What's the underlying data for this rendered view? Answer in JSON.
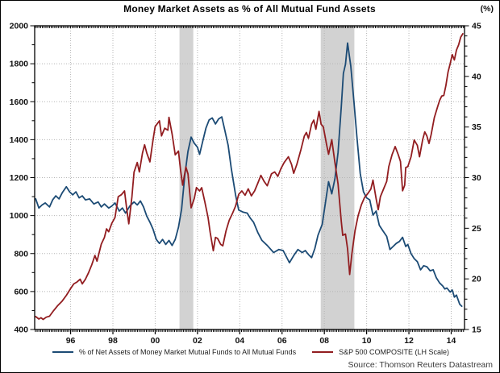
{
  "title": "Money Market Assets as % of All Mutual Fund Assets",
  "right_axis_unit": "(%)",
  "source": "Source: Thomson Reuters Datastream",
  "legend": [
    {
      "label": "% of Net Assets of Money Market Mutual Funds to All Mutual Funds",
      "color": "#1c4b75"
    },
    {
      "label": "S&P 500 COMPOSITE (LH Scale)",
      "color": "#921d20"
    }
  ],
  "chart_data": {
    "type": "line",
    "title": "Money Market Assets as % of All Mutual Fund Assets",
    "grid": "dotted",
    "x_axis": {
      "range": [
        1994.3,
        2014.63
      ],
      "tick_years": [
        1996,
        1998,
        2000,
        2002,
        2004,
        2006,
        2008,
        2010,
        2012,
        2014
      ],
      "tick_labels": [
        "96",
        "98",
        "00",
        "02",
        "04",
        "06",
        "08",
        "10",
        "12",
        "14"
      ]
    },
    "left_axis": {
      "range": [
        400,
        2000
      ],
      "ticks": [
        2000,
        1800,
        1600,
        1400,
        1200,
        1000,
        800,
        600,
        400
      ],
      "minor_step": 100,
      "applies_to": "S&P 500 COMPOSITE (LH Scale)"
    },
    "right_axis": {
      "range": [
        15,
        45
      ],
      "ticks": [
        45,
        40,
        35,
        30,
        25,
        20,
        15
      ],
      "minor_step": 1,
      "unit": "(%)",
      "applies_to": "% of Net Assets of Money Market Mutual Funds to All Mutual Funds"
    },
    "shaded_regions": [
      {
        "from": 2001.15,
        "to": 2001.8,
        "color": "#d2d2d2",
        "meaning": "recession band"
      },
      {
        "from": 2007.83,
        "to": 2009.42,
        "color": "#d2d2d2",
        "meaning": "recession band"
      }
    ],
    "series": [
      {
        "name": "% of Net Assets of Money Market Mutual Funds to All Mutual Funds",
        "axis": "right",
        "color": "#1c4b75",
        "points": [
          [
            1994.35,
            27.9
          ],
          [
            1994.5,
            27.0
          ],
          [
            1994.65,
            27.3
          ],
          [
            1994.8,
            27.5
          ],
          [
            1995.0,
            27.1
          ],
          [
            1995.15,
            27.8
          ],
          [
            1995.3,
            28.2
          ],
          [
            1995.45,
            27.9
          ],
          [
            1995.6,
            28.5
          ],
          [
            1995.8,
            29.1
          ],
          [
            1995.95,
            28.6
          ],
          [
            1996.1,
            28.3
          ],
          [
            1996.25,
            28.6
          ],
          [
            1996.4,
            28.0
          ],
          [
            1996.55,
            28.2
          ],
          [
            1996.7,
            27.8
          ],
          [
            1996.9,
            27.9
          ],
          [
            1997.1,
            27.4
          ],
          [
            1997.3,
            27.6
          ],
          [
            1997.45,
            27.1
          ],
          [
            1997.6,
            27.4
          ],
          [
            1997.8,
            27.0
          ],
          [
            1997.95,
            27.2
          ],
          [
            1998.1,
            27.5
          ],
          [
            1998.3,
            26.7
          ],
          [
            1998.45,
            27.0
          ],
          [
            1998.6,
            26.5
          ],
          [
            1998.8,
            27.2
          ],
          [
            1999.0,
            27.6
          ],
          [
            1999.15,
            27.3
          ],
          [
            1999.3,
            27.7
          ],
          [
            1999.45,
            27.1
          ],
          [
            1999.6,
            26.2
          ],
          [
            1999.75,
            25.6
          ],
          [
            1999.9,
            24.9
          ],
          [
            2000.05,
            23.9
          ],
          [
            2000.2,
            23.5
          ],
          [
            2000.35,
            23.9
          ],
          [
            2000.5,
            23.4
          ],
          [
            2000.65,
            23.8
          ],
          [
            2000.8,
            23.3
          ],
          [
            2000.95,
            23.9
          ],
          [
            2001.1,
            25.1
          ],
          [
            2001.25,
            26.9
          ],
          [
            2001.4,
            30.2
          ],
          [
            2001.55,
            32.6
          ],
          [
            2001.7,
            34.0
          ],
          [
            2001.85,
            33.4
          ],
          [
            2002.0,
            33.0
          ],
          [
            2002.1,
            32.3
          ],
          [
            2002.25,
            33.6
          ],
          [
            2002.4,
            34.9
          ],
          [
            2002.55,
            35.7
          ],
          [
            2002.7,
            35.9
          ],
          [
            2002.85,
            35.3
          ],
          [
            2003.0,
            35.8
          ],
          [
            2003.15,
            36.0
          ],
          [
            2003.3,
            34.6
          ],
          [
            2003.45,
            33.2
          ],
          [
            2003.6,
            30.9
          ],
          [
            2003.8,
            28.3
          ],
          [
            2003.95,
            26.8
          ],
          [
            2004.15,
            26.6
          ],
          [
            2004.35,
            26.5
          ],
          [
            2004.5,
            26.0
          ],
          [
            2004.65,
            25.6
          ],
          [
            2004.85,
            24.6
          ],
          [
            2005.05,
            23.8
          ],
          [
            2005.3,
            23.3
          ],
          [
            2005.6,
            22.6
          ],
          [
            2005.85,
            22.9
          ],
          [
            2006.05,
            22.8
          ],
          [
            2006.2,
            22.2
          ],
          [
            2006.35,
            21.6
          ],
          [
            2006.55,
            22.3
          ],
          [
            2006.75,
            22.9
          ],
          [
            2006.95,
            22.6
          ],
          [
            2007.1,
            22.8
          ],
          [
            2007.25,
            22.4
          ],
          [
            2007.4,
            22.1
          ],
          [
            2007.55,
            23.0
          ],
          [
            2007.7,
            24.3
          ],
          [
            2007.9,
            25.4
          ],
          [
            2008.05,
            27.5
          ],
          [
            2008.2,
            29.6
          ],
          [
            2008.35,
            28.4
          ],
          [
            2008.5,
            29.9
          ],
          [
            2008.65,
            32.5
          ],
          [
            2008.8,
            37.0
          ],
          [
            2008.9,
            40.3
          ],
          [
            2009.0,
            41.2
          ],
          [
            2009.1,
            43.3
          ],
          [
            2009.25,
            41.0
          ],
          [
            2009.4,
            37.5
          ],
          [
            2009.55,
            33.8
          ],
          [
            2009.7,
            30.4
          ],
          [
            2009.85,
            28.6
          ],
          [
            2010.0,
            28.0
          ],
          [
            2010.15,
            27.8
          ],
          [
            2010.3,
            26.3
          ],
          [
            2010.45,
            26.7
          ],
          [
            2010.6,
            25.3
          ],
          [
            2010.75,
            24.8
          ],
          [
            2010.95,
            24.2
          ],
          [
            2011.1,
            22.9
          ],
          [
            2011.25,
            23.2
          ],
          [
            2011.4,
            23.5
          ],
          [
            2011.55,
            23.7
          ],
          [
            2011.7,
            24.1
          ],
          [
            2011.85,
            23.2
          ],
          [
            2011.95,
            23.4
          ],
          [
            2012.1,
            22.5
          ],
          [
            2012.25,
            22.0
          ],
          [
            2012.4,
            21.7
          ],
          [
            2012.55,
            20.9
          ],
          [
            2012.7,
            21.3
          ],
          [
            2012.85,
            21.2
          ],
          [
            2013.0,
            20.8
          ],
          [
            2013.15,
            20.9
          ],
          [
            2013.3,
            20.1
          ],
          [
            2013.45,
            19.6
          ],
          [
            2013.6,
            19.3
          ],
          [
            2013.7,
            19.0
          ],
          [
            2013.8,
            19.1
          ],
          [
            2013.95,
            18.7
          ],
          [
            2014.05,
            18.9
          ],
          [
            2014.15,
            18.2
          ],
          [
            2014.25,
            18.4
          ],
          [
            2014.4,
            17.5
          ],
          [
            2014.5,
            17.3
          ]
        ]
      },
      {
        "name": "S&P 500 COMPOSITE (LH Scale)",
        "axis": "left",
        "color": "#921d20",
        "points": [
          [
            1994.35,
            468
          ],
          [
            1994.5,
            455
          ],
          [
            1994.6,
            462
          ],
          [
            1994.7,
            453
          ],
          [
            1994.85,
            465
          ],
          [
            1995.0,
            470
          ],
          [
            1995.2,
            500
          ],
          [
            1995.4,
            527
          ],
          [
            1995.6,
            550
          ],
          [
            1995.8,
            580
          ],
          [
            1996.0,
            616
          ],
          [
            1996.15,
            640
          ],
          [
            1996.3,
            650
          ],
          [
            1996.45,
            665
          ],
          [
            1996.55,
            640
          ],
          [
            1996.7,
            665
          ],
          [
            1996.85,
            700
          ],
          [
            1997.0,
            741
          ],
          [
            1997.15,
            790
          ],
          [
            1997.25,
            760
          ],
          [
            1997.45,
            850
          ],
          [
            1997.6,
            885
          ],
          [
            1997.7,
            930
          ],
          [
            1997.8,
            915
          ],
          [
            1997.95,
            960
          ],
          [
            1998.1,
            990
          ],
          [
            1998.25,
            1100
          ],
          [
            1998.4,
            1110
          ],
          [
            1998.55,
            1130
          ],
          [
            1998.65,
            1040
          ],
          [
            1998.75,
            957
          ],
          [
            1998.9,
            1100
          ],
          [
            1999.0,
            1229
          ],
          [
            1999.15,
            1280
          ],
          [
            1999.25,
            1230
          ],
          [
            1999.4,
            1330
          ],
          [
            1999.5,
            1373
          ],
          [
            1999.6,
            1330
          ],
          [
            1999.75,
            1283
          ],
          [
            1999.9,
            1400
          ],
          [
            2000.0,
            1469
          ],
          [
            2000.2,
            1499
          ],
          [
            2000.3,
            1420
          ],
          [
            2000.45,
            1460
          ],
          [
            2000.6,
            1450
          ],
          [
            2000.65,
            1518
          ],
          [
            2000.8,
            1430
          ],
          [
            2000.95,
            1320
          ],
          [
            2001.1,
            1340
          ],
          [
            2001.2,
            1240
          ],
          [
            2001.3,
            1160
          ],
          [
            2001.45,
            1256
          ],
          [
            2001.55,
            1220
          ],
          [
            2001.7,
            1041
          ],
          [
            2001.85,
            1090
          ],
          [
            2001.95,
            1148
          ],
          [
            2002.1,
            1130
          ],
          [
            2002.2,
            1147
          ],
          [
            2002.35,
            1070
          ],
          [
            2002.5,
            990
          ],
          [
            2002.6,
            912
          ],
          [
            2002.75,
            815
          ],
          [
            2002.85,
            885
          ],
          [
            2002.95,
            880
          ],
          [
            2003.1,
            848
          ],
          [
            2003.2,
            841
          ],
          [
            2003.35,
            920
          ],
          [
            2003.5,
            975
          ],
          [
            2003.65,
            1010
          ],
          [
            2003.8,
            1050
          ],
          [
            2003.95,
            1112
          ],
          [
            2004.1,
            1130
          ],
          [
            2004.25,
            1107
          ],
          [
            2004.4,
            1141
          ],
          [
            2004.55,
            1104
          ],
          [
            2004.7,
            1130
          ],
          [
            2004.85,
            1170
          ],
          [
            2005.0,
            1212
          ],
          [
            2005.15,
            1180
          ],
          [
            2005.3,
            1157
          ],
          [
            2005.5,
            1220
          ],
          [
            2005.65,
            1230
          ],
          [
            2005.8,
            1207
          ],
          [
            2005.95,
            1248
          ],
          [
            2006.1,
            1280
          ],
          [
            2006.3,
            1310
          ],
          [
            2006.45,
            1270
          ],
          [
            2006.55,
            1223
          ],
          [
            2006.7,
            1270
          ],
          [
            2006.9,
            1350
          ],
          [
            2007.05,
            1418
          ],
          [
            2007.15,
            1438
          ],
          [
            2007.25,
            1407
          ],
          [
            2007.4,
            1482
          ],
          [
            2007.5,
            1503
          ],
          [
            2007.6,
            1455
          ],
          [
            2007.75,
            1549
          ],
          [
            2007.85,
            1481
          ],
          [
            2007.95,
            1468
          ],
          [
            2008.1,
            1378
          ],
          [
            2008.2,
            1323
          ],
          [
            2008.35,
            1400
          ],
          [
            2008.5,
            1280
          ],
          [
            2008.65,
            1166
          ],
          [
            2008.8,
            969
          ],
          [
            2008.87,
            896
          ],
          [
            2009.0,
            903
          ],
          [
            2009.1,
            825
          ],
          [
            2009.2,
            690
          ],
          [
            2009.3,
            798
          ],
          [
            2009.45,
            919
          ],
          [
            2009.6,
            1000
          ],
          [
            2009.75,
            1057
          ],
          [
            2009.9,
            1095
          ],
          [
            2010.05,
            1115
          ],
          [
            2010.2,
            1140
          ],
          [
            2010.3,
            1187
          ],
          [
            2010.45,
            1089
          ],
          [
            2010.55,
            1031
          ],
          [
            2010.65,
            1100
          ],
          [
            2010.8,
            1140
          ],
          [
            2010.95,
            1180
          ],
          [
            2011.05,
            1258
          ],
          [
            2011.2,
            1320
          ],
          [
            2011.35,
            1364
          ],
          [
            2011.5,
            1320
          ],
          [
            2011.6,
            1285
          ],
          [
            2011.7,
            1131
          ],
          [
            2011.8,
            1160
          ],
          [
            2011.85,
            1253
          ],
          [
            2011.95,
            1258
          ],
          [
            2012.1,
            1310
          ],
          [
            2012.25,
            1398
          ],
          [
            2012.4,
            1370
          ],
          [
            2012.5,
            1310
          ],
          [
            2012.65,
            1400
          ],
          [
            2012.75,
            1441
          ],
          [
            2012.85,
            1420
          ],
          [
            2012.95,
            1380
          ],
          [
            2013.05,
            1426
          ],
          [
            2013.2,
            1515
          ],
          [
            2013.35,
            1570
          ],
          [
            2013.45,
            1606
          ],
          [
            2013.55,
            1630
          ],
          [
            2013.65,
            1633
          ],
          [
            2013.75,
            1685
          ],
          [
            2013.85,
            1757
          ],
          [
            2013.95,
            1800
          ],
          [
            2014.05,
            1848
          ],
          [
            2014.15,
            1820
          ],
          [
            2014.25,
            1872
          ],
          [
            2014.35,
            1900
          ],
          [
            2014.45,
            1940
          ],
          [
            2014.55,
            1958
          ]
        ]
      }
    ]
  }
}
